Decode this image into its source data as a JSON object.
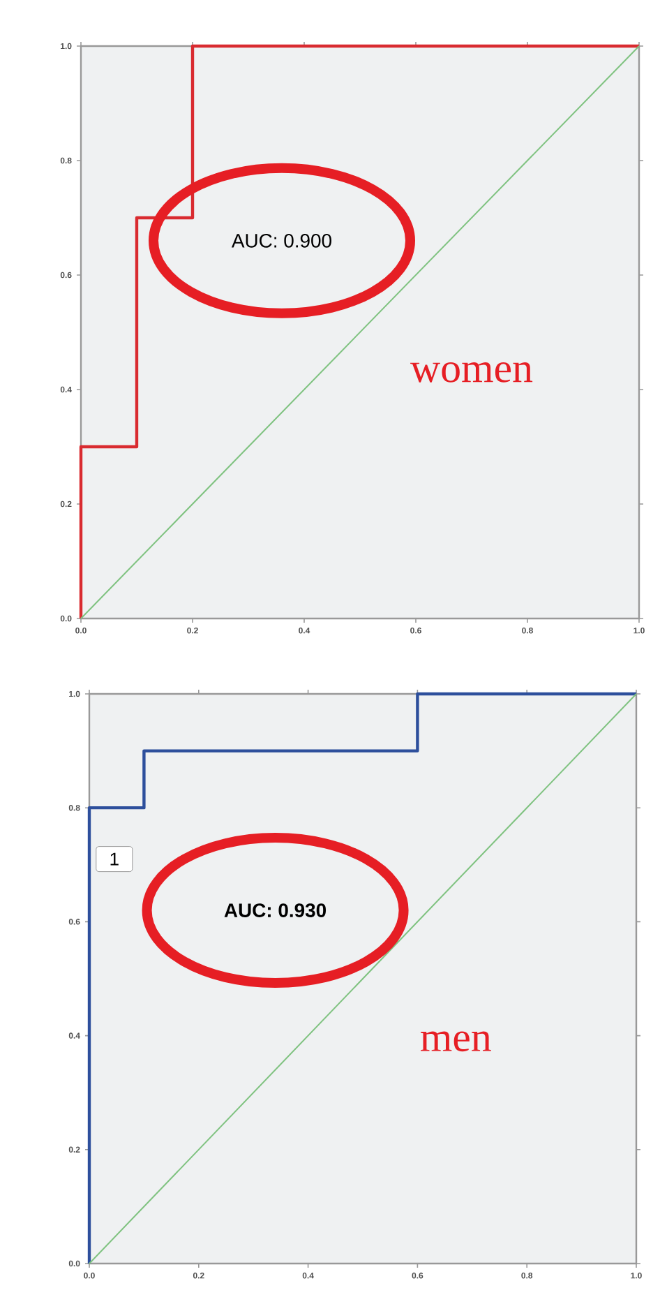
{
  "chart_data": [
    {
      "type": "line",
      "series": [
        {
          "color": "#d92b30",
          "x": [
            0,
            0,
            0.1,
            0.1,
            0.2,
            0.2,
            1
          ],
          "values": [
            0,
            0.3,
            0.3,
            0.7,
            0.7,
            1,
            1
          ]
        },
        {
          "color": "#7ec27f",
          "x": [
            0,
            1
          ],
          "values": [
            0,
            1
          ]
        }
      ],
      "xlim": [
        0,
        1
      ],
      "ylim": [
        0,
        1
      ],
      "xticks": [
        {
          "value": 0,
          "label": "0.0"
        },
        {
          "value": 0.2,
          "label": "0.2"
        },
        {
          "value": 0.4,
          "label": "0.4"
        },
        {
          "value": 0.6,
          "label": "0.6"
        },
        {
          "value": 0.8,
          "label": "0.8"
        },
        {
          "value": 1,
          "label": "1.0"
        }
      ],
      "yticks": [
        {
          "value": 0,
          "label": "0.0"
        },
        {
          "value": 0.2,
          "label": "0.2"
        },
        {
          "value": 0.4,
          "label": "0.4"
        },
        {
          "value": 0.6,
          "label": "0.6"
        },
        {
          "value": 0.8,
          "label": "0.8"
        },
        {
          "value": 1,
          "label": "1.0"
        }
      ],
      "annotations": [
        "AUC: 0.900",
        "women"
      ]
    },
    {
      "type": "line",
      "series": [
        {
          "color": "#2d4f9c",
          "x": [
            0,
            0,
            0.1,
            0.1,
            0.6,
            0.6,
            1
          ],
          "values": [
            0,
            0.8,
            0.8,
            0.9,
            0.9,
            1,
            1
          ]
        },
        {
          "color": "#7ec27f",
          "x": [
            0,
            1
          ],
          "values": [
            0,
            1
          ]
        }
      ],
      "xlim": [
        0,
        1
      ],
      "ylim": [
        0,
        1
      ],
      "xticks": [
        {
          "value": 0,
          "label": "0.0"
        },
        {
          "value": 0.2,
          "label": "0.2"
        },
        {
          "value": 0.4,
          "label": "0.4"
        },
        {
          "value": 0.6,
          "label": "0.6"
        },
        {
          "value": 0.8,
          "label": "0.8"
        },
        {
          "value": 1,
          "label": "1.0"
        }
      ],
      "yticks": [
        {
          "value": 0,
          "label": "0.0"
        },
        {
          "value": 0.2,
          "label": "0.2"
        },
        {
          "value": 0.4,
          "label": "0.4"
        },
        {
          "value": 0.6,
          "label": "0.6"
        },
        {
          "value": 0.8,
          "label": "0.8"
        },
        {
          "value": 1,
          "label": "1.0"
        }
      ],
      "annotations": [
        "1",
        "AUC: 0.930",
        "men"
      ]
    }
  ]
}
